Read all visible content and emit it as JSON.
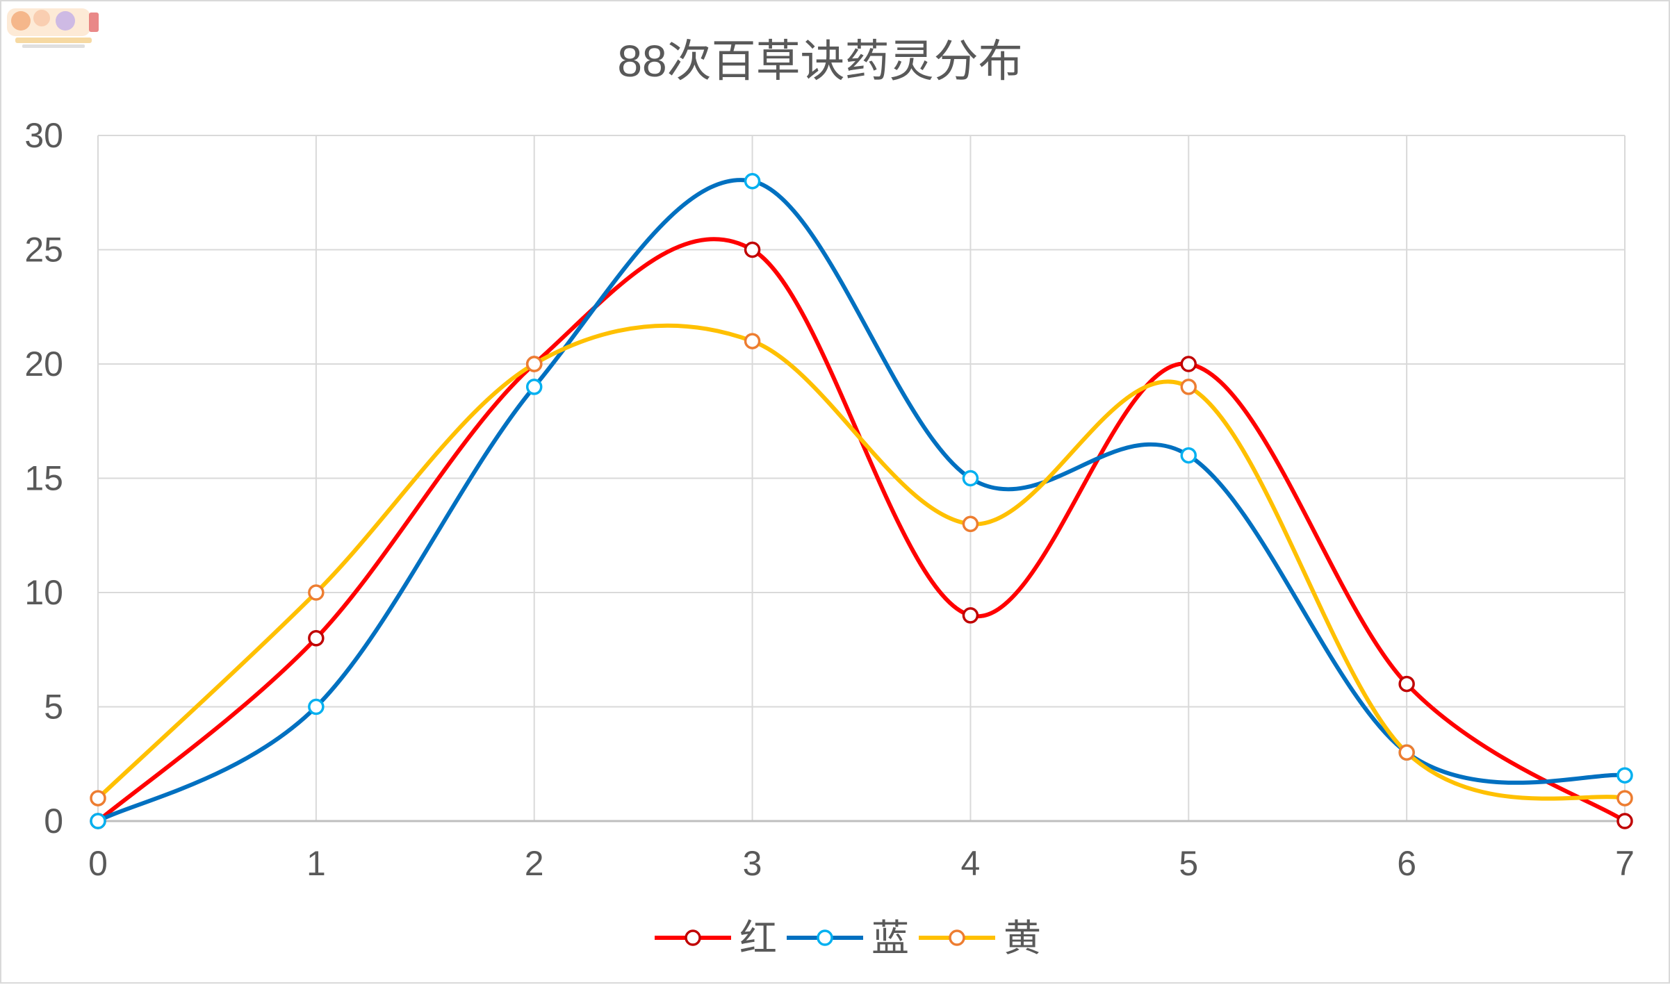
{
  "chart_data": {
    "type": "line",
    "smooth": true,
    "title": "88次百草诀药灵分布",
    "xlabel": "",
    "ylabel": "",
    "x": [
      0,
      1,
      2,
      3,
      4,
      5,
      6,
      7
    ],
    "xlim": [
      0,
      7
    ],
    "ylim": [
      0,
      30
    ],
    "y_ticks": [
      0,
      5,
      10,
      15,
      20,
      25,
      30
    ],
    "grid": true,
    "legend_position": "bottom",
    "series": [
      {
        "name": "红",
        "color": "#ff0000",
        "marker_stroke": "#c00000",
        "values": [
          0,
          8,
          20,
          25,
          9,
          20,
          6,
          0
        ]
      },
      {
        "name": "蓝",
        "color": "#0070c0",
        "marker_stroke": "#00b0f0",
        "values": [
          0,
          5,
          19,
          28,
          15,
          16,
          3,
          2
        ]
      },
      {
        "name": "黄",
        "color": "#ffc000",
        "marker_stroke": "#ed7d31",
        "values": [
          1,
          10,
          20,
          21,
          13,
          19,
          3,
          1
        ]
      }
    ]
  },
  "colors": {
    "grid": "#d9d9d9",
    "axis": "#bfbfbf",
    "text": "#595959"
  },
  "watermark": {
    "icon": "game-logo-watermark-icon"
  }
}
